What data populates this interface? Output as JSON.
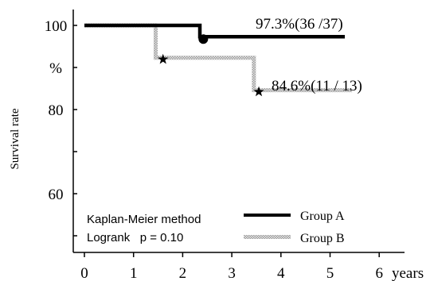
{
  "chart_data": {
    "type": "line",
    "title": "",
    "xlabel": "years",
    "ylabel": "Survival rate",
    "xlim": [
      0,
      6
    ],
    "ylim": [
      50,
      100
    ],
    "x_ticks": [
      "0",
      "1",
      "2",
      "3",
      "4",
      "5",
      "6"
    ],
    "y_ticks": [
      {
        "value": 100,
        "label": "100"
      },
      {
        "value": 90,
        "label": "%"
      },
      {
        "value": 80,
        "label": "80"
      },
      {
        "value": 70,
        "label": ""
      },
      {
        "value": 60,
        "label": "60"
      },
      {
        "value": 50,
        "label": ""
      }
    ],
    "series": [
      {
        "name": "Group A",
        "style": "solid",
        "color": "#000000",
        "steps": [
          [
            0,
            100
          ],
          [
            2.35,
            100
          ],
          [
            2.35,
            97.3
          ],
          [
            5.3,
            97.3
          ]
        ],
        "event_marker": "circle",
        "events": [
          [
            2.42,
            97.3
          ]
        ],
        "end_label": "97.3%(36 /37)"
      },
      {
        "name": "Group B",
        "style": "checkered",
        "color": "#888888",
        "steps": [
          [
            0,
            100
          ],
          [
            1.45,
            100
          ],
          [
            1.45,
            92.3
          ],
          [
            3.45,
            92.3
          ],
          [
            3.45,
            84.6
          ],
          [
            5.45,
            84.6
          ]
        ],
        "event_marker": "star",
        "events": [
          [
            1.6,
            92.3
          ],
          [
            3.55,
            84.6
          ]
        ],
        "end_label": "84.6%(11 / 13)"
      }
    ],
    "annotations": [
      "Kaplan-Meier method",
      "Logrank   p = 0.10"
    ],
    "legend": {
      "placement": "bottom-center",
      "entries": [
        "Group A",
        "Group B"
      ]
    },
    "grid": false
  }
}
